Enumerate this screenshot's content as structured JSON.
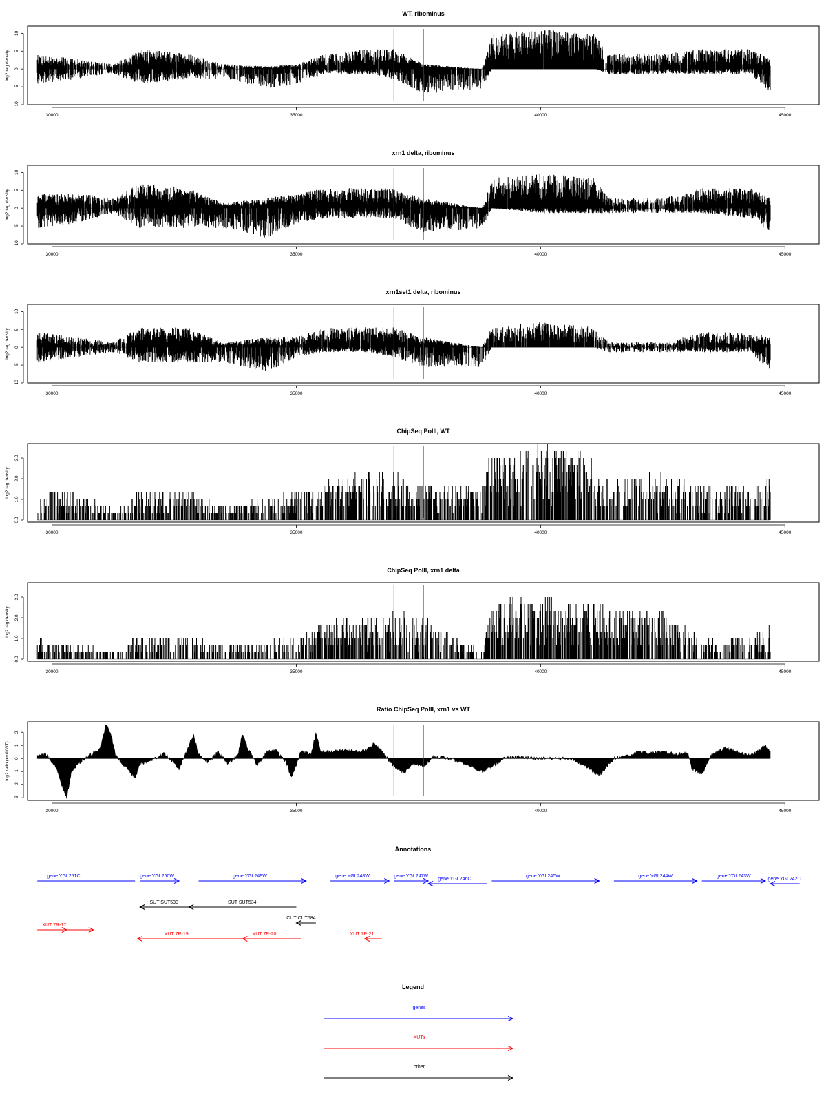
{
  "figure": {
    "xlim": [
      29500,
      45700
    ],
    "x_ticks": [
      30000,
      35000,
      40000,
      45000
    ],
    "markers": {
      "color": "#ff0000",
      "positions": [
        37000,
        37600
      ]
    }
  },
  "chart_data": [
    {
      "type": "bar",
      "title": "WT, ribominus",
      "ylabel": "log2 tag density",
      "ylim": [
        -10,
        12
      ],
      "y_ticks": [
        10,
        5,
        0,
        -5,
        -10
      ],
      "x_ticks": [
        30000,
        35000,
        40000,
        45000
      ],
      "profile_x": [
        29700,
        30500,
        31250,
        31800,
        32800,
        33500,
        34400,
        35000,
        35600,
        36500,
        37000,
        37600,
        38800,
        39000,
        40000,
        41100,
        41400,
        42500,
        43300,
        44300,
        44700
      ],
      "profile_y": [
        3,
        2,
        1,
        4,
        3,
        1,
        0.5,
        1,
        3,
        4,
        4,
        1,
        0,
        7,
        8,
        7,
        3,
        3,
        4,
        4,
        2
      ],
      "profile_neg": [
        -3,
        -2,
        -1,
        -3,
        -2,
        -2,
        -4,
        -3,
        -1,
        -1,
        -2,
        -5,
        -4,
        0,
        0,
        0,
        -1,
        -1,
        -1,
        -1,
        -5
      ]
    },
    {
      "type": "bar",
      "title": "xrn1 delta, ribominus",
      "ylabel": "log2 tag density",
      "ylim": [
        -10,
        12
      ],
      "y_ticks": [
        10,
        5,
        0,
        -5,
        -10
      ],
      "x_ticks": [
        30000,
        35000,
        40000,
        45000
      ],
      "profile_x": [
        29700,
        30500,
        31250,
        31800,
        32800,
        33500,
        34400,
        35000,
        35600,
        36500,
        37000,
        37600,
        38800,
        39000,
        40000,
        41100,
        41400,
        42500,
        43300,
        44300,
        44700
      ],
      "profile_y": [
        3,
        3,
        2,
        5,
        4,
        1,
        2,
        3,
        4,
        4,
        4,
        2,
        0,
        6,
        7,
        6,
        2,
        2,
        4,
        4,
        2
      ],
      "profile_neg": [
        -4,
        -3,
        -1,
        -4,
        -4,
        -4,
        -6,
        -3,
        -2,
        -2,
        -2,
        -5,
        -4,
        0,
        -1,
        -1,
        -1,
        -1,
        -1,
        -2,
        -5
      ]
    },
    {
      "type": "bar",
      "title": "xrn1set1 delta, ribominus",
      "ylabel": "log2 tag density",
      "ylim": [
        -10,
        12
      ],
      "y_ticks": [
        10,
        5,
        0,
        -5,
        -10
      ],
      "x_ticks": [
        30000,
        35000,
        40000,
        45000
      ],
      "profile_x": [
        29700,
        30500,
        31250,
        31800,
        32800,
        33500,
        34400,
        35000,
        35600,
        36500,
        37000,
        37600,
        38800,
        39000,
        40000,
        41100,
        41400,
        42500,
        43300,
        44300,
        44700
      ],
      "profile_y": [
        3,
        2,
        1,
        4,
        4,
        1,
        2,
        2,
        4,
        4,
        4,
        2,
        0,
        4,
        5,
        4,
        1,
        1,
        3,
        3,
        2
      ],
      "profile_neg": [
        -3,
        -2,
        -1,
        -3,
        -3,
        -3,
        -5,
        -2,
        -1,
        -1,
        -2,
        -4,
        -4,
        0,
        0,
        0,
        -1,
        -1,
        -1,
        -1,
        -5
      ]
    },
    {
      "type": "bar",
      "title": "ChipSeq PolII, WT",
      "ylabel": "log2 tag density",
      "ylim": [
        -0.1,
        3.7
      ],
      "y_ticks": [
        0.0,
        1.0,
        2.0,
        3.0
      ],
      "y_tick_labels": [
        "0.0",
        "1.0",
        "2.0",
        "3.0"
      ],
      "x_ticks": [
        30000,
        35000,
        40000,
        45000
      ],
      "profile_x": [
        29700,
        30500,
        31250,
        31800,
        32800,
        33500,
        34400,
        35000,
        35600,
        36500,
        37000,
        37600,
        38800,
        39000,
        40000,
        41100,
        41400,
        42500,
        43300,
        44300,
        44700
      ],
      "profile_y": [
        1,
        1,
        0.3,
        1,
        1,
        0.5,
        0.7,
        1,
        1.3,
        1.7,
        1.7,
        1.3,
        1.3,
        2.4,
        2.6,
        2.4,
        1.5,
        1.6,
        1.2,
        1.2,
        1.5
      ],
      "profile_neg": [
        0,
        0,
        0,
        0,
        0,
        0,
        0,
        0,
        0,
        0,
        0,
        0,
        0,
        0,
        0,
        0,
        0,
        0,
        0,
        0,
        0
      ]
    },
    {
      "type": "bar",
      "title": "ChipSeq PolII, xrn1 delta",
      "ylabel": "log2 tag density",
      "ylim": [
        -0.1,
        3.7
      ],
      "y_ticks": [
        0.0,
        1.0,
        2.0,
        3.0
      ],
      "y_tick_labels": [
        "0.0",
        "1.0",
        "2.0",
        "3.0"
      ],
      "x_ticks": [
        30000,
        35000,
        40000,
        45000
      ],
      "profile_x": [
        29700,
        30500,
        31250,
        31800,
        32800,
        33500,
        34400,
        35000,
        35600,
        36500,
        37000,
        37600,
        38800,
        39000,
        40000,
        41100,
        41400,
        42500,
        43300,
        44300,
        44700
      ],
      "profile_y": [
        0.7,
        0.5,
        0.3,
        0.8,
        0.8,
        0.5,
        0.6,
        0.7,
        1.4,
        1.6,
        1.6,
        1.5,
        0.3,
        2.0,
        2.2,
        2.0,
        1.8,
        1.8,
        0.8,
        0.8,
        1.2
      ],
      "profile_neg": [
        0,
        0,
        0,
        0,
        0,
        0,
        0,
        0,
        0,
        0,
        0,
        0,
        0,
        0,
        0,
        0,
        0,
        0,
        0,
        0,
        0
      ]
    },
    {
      "type": "area",
      "title": "Ratio ChipSeq PolII, xrn1 vs WT",
      "ylabel": "log2 ratio (xrn1/WT)",
      "ylim": [
        -3.2,
        2.8
      ],
      "y_ticks": [
        2,
        1,
        0,
        -1,
        -2,
        -3
      ],
      "x_ticks": [
        30000,
        35000,
        40000,
        45000
      ],
      "x": [
        29700,
        29900,
        30100,
        30200,
        30300,
        30400,
        30600,
        30800,
        31000,
        31100,
        31200,
        31300,
        31500,
        31700,
        31800,
        32000,
        32300,
        32600,
        32800,
        32900,
        33000,
        33200,
        33400,
        33600,
        33800,
        33900,
        34000,
        34200,
        34400,
        34600,
        34800,
        34900,
        35000,
        35100,
        35300,
        35400,
        35500,
        35700,
        35900,
        36100,
        36300,
        36500,
        36600,
        36800,
        37000,
        37200,
        37400,
        37600,
        37800,
        38000,
        38300,
        38600,
        38800,
        39000,
        39300,
        39600,
        40000,
        40300,
        40600,
        40900,
        41000,
        41200,
        41500,
        41800,
        42000,
        42200,
        42500,
        42800,
        43000,
        43100,
        43300,
        43500,
        43800,
        44000,
        44200,
        44400,
        44600,
        44700
      ],
      "y": [
        0.2,
        0.3,
        -0.8,
        -2.0,
        -3.0,
        -1.0,
        -0.2,
        0.3,
        0.8,
        2.6,
        2.0,
        0.2,
        -0.6,
        -1.5,
        -0.4,
        -0.2,
        0.4,
        -0.8,
        1.0,
        1.8,
        0.3,
        -0.3,
        0.5,
        -0.4,
        0.2,
        1.9,
        0.8,
        -0.5,
        0.5,
        0.6,
        -0.3,
        -1.5,
        -0.5,
        0.6,
        0.3,
        1.9,
        0.5,
        0.5,
        0.6,
        0.6,
        0.5,
        0.8,
        1.2,
        0.3,
        -0.6,
        -1.1,
        -0.4,
        -0.6,
        0.1,
        0.1,
        -0.2,
        -0.6,
        -1.0,
        -0.6,
        0.1,
        0.1,
        0.0,
        0.0,
        0.0,
        -0.5,
        -0.8,
        -1.3,
        0.0,
        0.2,
        0.5,
        0.4,
        0.5,
        0.3,
        0.5,
        -0.8,
        -1.2,
        0.3,
        0.8,
        0.5,
        0.3,
        0.4,
        1.0,
        0.5
      ]
    }
  ],
  "annotations": {
    "title": "Annotations",
    "colors": {
      "gene": "#0000ff",
      "xut": "#ff0000",
      "other": "#000000"
    },
    "items": [
      {
        "label": "gene YGL251C",
        "start": 29700,
        "end": 31700,
        "dir": "none",
        "kind": "gene",
        "row": 0,
        "label_at": 29900
      },
      {
        "label": "gene YGL250W",
        "start": 31800,
        "end": 32600,
        "dir": "right",
        "kind": "gene",
        "row": 0,
        "label_at": 31800
      },
      {
        "label": "gene YGL249W",
        "start": 33000,
        "end": 35200,
        "dir": "right",
        "kind": "gene",
        "row": 0,
        "label_at": 33700
      },
      {
        "label": "gene YGL248W",
        "start": 35700,
        "end": 36900,
        "dir": "right",
        "kind": "gene",
        "row": 0,
        "label_at": 35800
      },
      {
        "label": "gene YGL247W",
        "start": 37000,
        "end": 37700,
        "dir": "right",
        "kind": "gene",
        "row": 0,
        "label_at": 37000
      },
      {
        "label": "gene YGL246C",
        "start": 37700,
        "end": 38900,
        "dir": "left",
        "kind": "gene",
        "row": 1,
        "label_at": 37900
      },
      {
        "label": "gene YGL245W",
        "start": 39000,
        "end": 41200,
        "dir": "right",
        "kind": "gene",
        "row": 0,
        "label_at": 39700
      },
      {
        "label": "gene YGL244W",
        "start": 41500,
        "end": 43200,
        "dir": "right",
        "kind": "gene",
        "row": 0,
        "label_at": 42000
      },
      {
        "label": "gene YGL243W",
        "start": 43300,
        "end": 44600,
        "dir": "right",
        "kind": "gene",
        "row": 0,
        "label_at": 43600
      },
      {
        "label": "gene YGL242C",
        "start": 44700,
        "end": 45300,
        "dir": "left",
        "kind": "gene",
        "row": 1,
        "label_at": 44650
      },
      {
        "label": "SUT SUT533",
        "start": 31800,
        "end": 32800,
        "dir": "left",
        "kind": "other",
        "row": 2,
        "label_at": 32000
      },
      {
        "label": "SUT SUT534",
        "start": 32800,
        "end": 35000,
        "dir": "left",
        "kind": "other",
        "row": 2,
        "label_at": 33600
      },
      {
        "label": "CUT CUT584",
        "start": 35000,
        "end": 35400,
        "dir": "left",
        "kind": "other",
        "row": 3,
        "label_at": 34800
      },
      {
        "label": "XUT 7R-17",
        "start": 29700,
        "end": 30300,
        "dir": "right",
        "kind": "xut",
        "row": 4,
        "label_at": 29800
      },
      {
        "label": "",
        "start": 30300,
        "end": 30850,
        "dir": "right",
        "kind": "xut",
        "row": 4,
        "label_at": 30300
      },
      {
        "label": "XUT 7R-19",
        "start": 31750,
        "end": 34000,
        "dir": "left",
        "kind": "xut",
        "row": 5,
        "label_at": 32300
      },
      {
        "label": "XUT 7R-20",
        "start": 33900,
        "end": 35100,
        "dir": "left",
        "kind": "xut",
        "row": 5,
        "label_at": 34100
      },
      {
        "label": "XUT 7R-21",
        "start": 36400,
        "end": 36750,
        "dir": "left",
        "kind": "xut",
        "row": 5,
        "label_at": 36100
      }
    ]
  },
  "legend": {
    "title": "Legend",
    "entries": [
      {
        "label": "genes",
        "color": "#0000ff"
      },
      {
        "label": "XUTs",
        "color": "#ff0000"
      },
      {
        "label": "other",
        "color": "#000000"
      }
    ]
  }
}
